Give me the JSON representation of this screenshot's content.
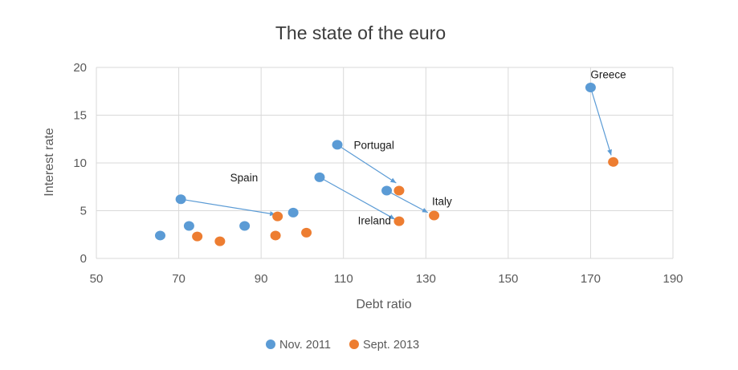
{
  "chart_data": {
    "type": "scatter",
    "title": "The state of the euro",
    "xlabel": "Debt ratio",
    "ylabel": "Interest rate",
    "xlim": [
      50,
      190
    ],
    "ylim": [
      0,
      20
    ],
    "x_ticks": [
      50,
      70,
      90,
      110,
      130,
      150,
      170,
      190
    ],
    "y_ticks": [
      0,
      5,
      10,
      15,
      20
    ],
    "grid": "vertical and horizontal",
    "legend_position": "bottom",
    "series": [
      {
        "name": "Nov. 2011",
        "color": "#5b9bd5",
        "points": [
          {
            "x": 65.5,
            "y": 2.4
          },
          {
            "x": 70.5,
            "y": 6.2
          },
          {
            "x": 72.5,
            "y": 3.4
          },
          {
            "x": 86,
            "y": 3.4
          },
          {
            "x": 97.8,
            "y": 4.8
          },
          {
            "x": 104.2,
            "y": 8.5
          },
          {
            "x": 108.5,
            "y": 11.9
          },
          {
            "x": 120.5,
            "y": 7.1
          },
          {
            "x": 170,
            "y": 17.9
          }
        ]
      },
      {
        "name": "Sept. 2013",
        "color": "#ed7d31",
        "points": [
          {
            "x": 74.5,
            "y": 2.3
          },
          {
            "x": 80,
            "y": 1.8
          },
          {
            "x": 93.5,
            "y": 2.4
          },
          {
            "x": 94,
            "y": 4.4
          },
          {
            "x": 101,
            "y": 2.7
          },
          {
            "x": 123.5,
            "y": 3.9
          },
          {
            "x": 123.5,
            "y": 7.1
          },
          {
            "x": 132,
            "y": 4.5
          },
          {
            "x": 175.5,
            "y": 10.1
          }
        ]
      }
    ],
    "annotations": [
      {
        "text": "Spain",
        "x": 82.5,
        "y": 8.5
      },
      {
        "text": "Portugal",
        "x": 112.5,
        "y": 11.9
      },
      {
        "text": "Ireland",
        "x": 113.5,
        "y": 4.0
      },
      {
        "text": "Italy",
        "x": 131.5,
        "y": 6.0
      },
      {
        "text": "Greece",
        "x": 170,
        "y": 19.3
      }
    ],
    "arrows": [
      {
        "from": [
          70.5,
          6.2
        ],
        "to": [
          93.5,
          4.6
        ]
      },
      {
        "from": [
          108.5,
          11.9
        ],
        "to": [
          122.8,
          7.9
        ]
      },
      {
        "from": [
          104.2,
          8.5
        ],
        "to": [
          122.5,
          4.1
        ]
      },
      {
        "from": [
          120.5,
          7.1
        ],
        "to": [
          130.5,
          4.8
        ]
      },
      {
        "from": [
          170,
          17.9
        ],
        "to": [
          175,
          10.8
        ]
      }
    ]
  }
}
